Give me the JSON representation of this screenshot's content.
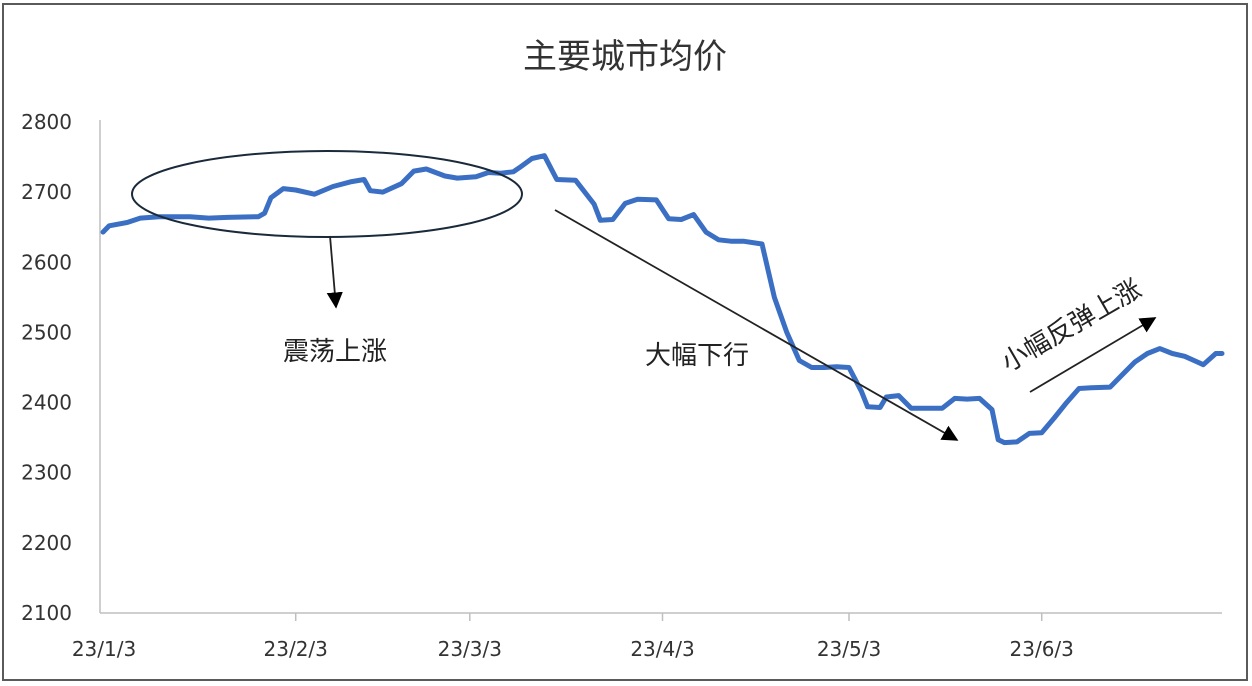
{
  "chart_data": {
    "type": "line",
    "title": "主要城市均价",
    "xlabel": "",
    "ylabel": "",
    "ylim": [
      2100,
      2800
    ],
    "yticks": [
      2100,
      2200,
      2300,
      2400,
      2500,
      2600,
      2700,
      2800
    ],
    "xticks": [
      {
        "label": "23/1/3",
        "day": 0
      },
      {
        "label": "23/2/3",
        "day": 31
      },
      {
        "label": "23/3/3",
        "day": 59
      },
      {
        "label": "23/4/3",
        "day": 90
      },
      {
        "label": "23/5/3",
        "day": 120
      },
      {
        "label": "23/6/3",
        "day": 151
      }
    ],
    "xlim_days": [
      0,
      180
    ],
    "grid": false,
    "line_color": "#3a6fc4",
    "series": [
      {
        "values": [
          [
            0,
            2643
          ],
          [
            1,
            2652
          ],
          [
            4,
            2657
          ],
          [
            6,
            2663
          ],
          [
            9,
            2665
          ],
          [
            14,
            2665
          ],
          [
            17,
            2663
          ],
          [
            20,
            2664
          ],
          [
            25,
            2665
          ],
          [
            26,
            2670
          ],
          [
            27,
            2692
          ],
          [
            29,
            2705
          ],
          [
            31,
            2703
          ],
          [
            34,
            2697
          ],
          [
            37,
            2708
          ],
          [
            40,
            2715
          ],
          [
            42,
            2718
          ],
          [
            43,
            2702
          ],
          [
            45,
            2700
          ],
          [
            48,
            2712
          ],
          [
            50,
            2730
          ],
          [
            52,
            2733
          ],
          [
            55,
            2723
          ],
          [
            57,
            2720
          ],
          [
            60,
            2722
          ],
          [
            62,
            2728
          ],
          [
            64,
            2727
          ],
          [
            66,
            2729
          ],
          [
            67,
            2735
          ],
          [
            69,
            2748
          ],
          [
            71,
            2752
          ],
          [
            73,
            2718
          ],
          [
            76,
            2717
          ],
          [
            79,
            2683
          ],
          [
            80,
            2660
          ],
          [
            82,
            2661
          ],
          [
            84,
            2684
          ],
          [
            86,
            2690
          ],
          [
            89,
            2689
          ],
          [
            91,
            2662
          ],
          [
            93,
            2661
          ],
          [
            95,
            2668
          ],
          [
            97,
            2643
          ],
          [
            99,
            2632
          ],
          [
            101,
            2630
          ],
          [
            103,
            2630
          ],
          [
            106,
            2626
          ],
          [
            108,
            2550
          ],
          [
            110,
            2500
          ],
          [
            112,
            2460
          ],
          [
            114,
            2450
          ],
          [
            116,
            2450
          ],
          [
            118,
            2451
          ],
          [
            120,
            2450
          ],
          [
            122,
            2416
          ],
          [
            123,
            2394
          ],
          [
            125,
            2393
          ],
          [
            126,
            2408
          ],
          [
            128,
            2410
          ],
          [
            130,
            2392
          ],
          [
            133,
            2392
          ],
          [
            135,
            2392
          ],
          [
            137,
            2406
          ],
          [
            139,
            2405
          ],
          [
            141,
            2406
          ],
          [
            143,
            2390
          ],
          [
            144,
            2347
          ],
          [
            145,
            2343
          ],
          [
            147,
            2344
          ],
          [
            149,
            2356
          ],
          [
            151,
            2357
          ],
          [
            153,
            2378
          ],
          [
            155,
            2400
          ],
          [
            157,
            2420
          ],
          [
            159,
            2421
          ],
          [
            162,
            2422
          ],
          [
            164,
            2440
          ],
          [
            166,
            2458
          ],
          [
            168,
            2470
          ],
          [
            170,
            2477
          ],
          [
            172,
            2470
          ],
          [
            174,
            2466
          ],
          [
            176,
            2458
          ],
          [
            177,
            2454
          ],
          [
            179,
            2470
          ],
          [
            180,
            2470
          ]
        ]
      }
    ],
    "annotations": [
      {
        "text": "震荡上涨"
      },
      {
        "text": "大幅下行"
      },
      {
        "text": "小幅反弹上涨"
      }
    ]
  }
}
